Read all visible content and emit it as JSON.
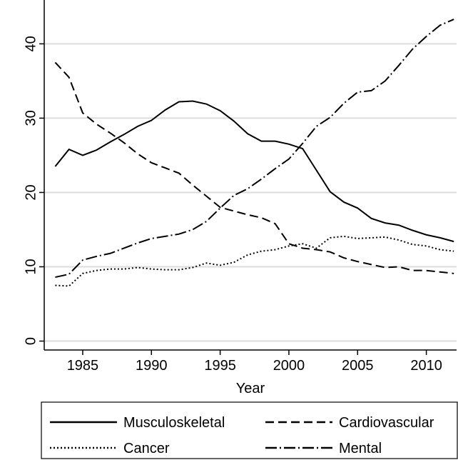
{
  "chart_data": {
    "type": "line",
    "x_label": "Year",
    "x": [
      1983,
      1984,
      1985,
      1986,
      1987,
      1988,
      1989,
      1990,
      1991,
      1992,
      1993,
      1994,
      1995,
      1996,
      1997,
      1998,
      1999,
      2000,
      2001,
      2002,
      2003,
      2004,
      2005,
      2006,
      2007,
      2008,
      2009,
      2010,
      2011,
      2012
    ],
    "series": [
      {
        "name": "Musculoskeletal",
        "color": "#000000",
        "dash": "none",
        "values": [
          23.5,
          25.8,
          25,
          25.7,
          26.8,
          27.8,
          28.9,
          29.7,
          31.1,
          32.2,
          32.3,
          31.9,
          31,
          29.6,
          27.9,
          26.9,
          26.9,
          26.5,
          25.9,
          23,
          20.1,
          18.7,
          17.9,
          16.5,
          15.9,
          15.6,
          14.9,
          14.3,
          13.9,
          13.4
        ]
      },
      {
        "name": "Cardiovascular",
        "color": "#000000",
        "dash": "12 6",
        "values": [
          37.5,
          35.5,
          30.7,
          29.2,
          28,
          26.7,
          25.2,
          24,
          23.3,
          22.6,
          21,
          19.5,
          18,
          17.5,
          17,
          16.6,
          15.8,
          13.1,
          12.5,
          12.3,
          12,
          11.2,
          10.7,
          10.3,
          9.9,
          10,
          9.5,
          9.5,
          9.3,
          9.1
        ]
      },
      {
        "name": "Cancer",
        "color": "#000000",
        "dash": "2 3",
        "values": [
          7.5,
          7.4,
          9.1,
          9.5,
          9.7,
          9.7,
          9.9,
          9.7,
          9.6,
          9.6,
          9.9,
          10.5,
          10.2,
          10.6,
          11.6,
          12.1,
          12.3,
          12.8,
          13.1,
          12.5,
          13.9,
          14.1,
          13.8,
          13.9,
          14,
          13.6,
          13,
          12.8,
          12.3,
          12.1
        ]
      },
      {
        "name": "Mental",
        "color": "#000000",
        "dash": "16 4 2 4",
        "values": [
          8.6,
          9,
          10.9,
          11.4,
          11.8,
          12.5,
          13.2,
          13.8,
          14.1,
          14.4,
          15,
          16.1,
          17.9,
          19.6,
          20.5,
          21.8,
          23.2,
          24.5,
          26.6,
          28.9,
          30.1,
          32,
          33.5,
          33.7,
          35,
          37.1,
          39.3,
          41,
          42.5,
          43.3
        ]
      }
    ],
    "xlim": [
      1982.2,
      2012.2
    ],
    "xticks": [
      1985,
      1990,
      1995,
      2000,
      2005,
      2010
    ],
    "ylim": [
      -1.2,
      45.9
    ],
    "yticks": [
      0,
      10,
      20,
      30,
      40
    ],
    "grid": true,
    "legend": "bottom"
  }
}
